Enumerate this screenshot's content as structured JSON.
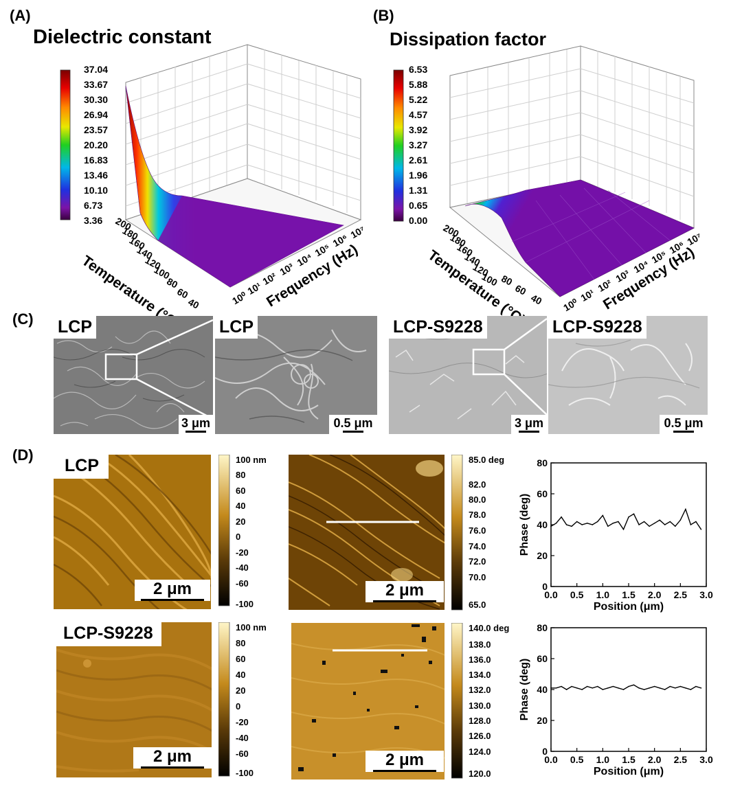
{
  "panel_a": {
    "label": "(A)",
    "title": "Dielectric constant",
    "colorbar_ticks": [
      "37.04",
      "33.67",
      "30.30",
      "26.94",
      "23.57",
      "20.20",
      "16.83",
      "13.46",
      "10.10",
      "6.73",
      "3.36"
    ],
    "temp_ticks": [
      "200",
      "180",
      "160",
      "140",
      "120",
      "100",
      "80",
      "60",
      "40"
    ],
    "temp_axis_label": "Temperature (°C)",
    "freq_ticks": [
      "10⁰",
      "10¹",
      "10²",
      "10³",
      "10⁴",
      "10⁵",
      "10⁶",
      "10⁷"
    ],
    "freq_axis_label": "Frequency (Hz)"
  },
  "panel_b": {
    "label": "(B)",
    "title": "Dissipation factor",
    "colorbar_ticks": [
      "6.53",
      "5.88",
      "5.22",
      "4.57",
      "3.92",
      "3.27",
      "2.61",
      "1.96",
      "1.31",
      "0.65",
      "0.00"
    ],
    "temp_ticks": [
      "200",
      "180",
      "160",
      "140",
      "120",
      "100",
      "80",
      "60",
      "40"
    ],
    "temp_axis_label": "Temperature (°C)",
    "freq_ticks": [
      "10⁰",
      "10¹",
      "10²",
      "10³",
      "10⁴",
      "10⁵",
      "10⁶",
      "10⁷"
    ],
    "freq_axis_label": "Frequency (Hz)"
  },
  "panel_c": {
    "label": "(C)",
    "images": [
      {
        "tag": "LCP",
        "scale": "3 μm"
      },
      {
        "tag": "LCP",
        "scale": "0.5 μm"
      },
      {
        "tag": "LCP-S9228",
        "scale": "3 μm"
      },
      {
        "tag": "LCP-S9228",
        "scale": "0.5 μm"
      }
    ]
  },
  "panel_d": {
    "label": "(D)",
    "rows": [
      {
        "tag": "LCP",
        "height_scale": "2 μm",
        "phase_scale": "2 μm",
        "height_ticks": [
          "100 nm",
          "80",
          "60",
          "40",
          "20",
          "0",
          "-20",
          "-40",
          "-60",
          "-100"
        ],
        "phase_ticks": [
          "85.0 deg",
          "82.0",
          "80.0",
          "78.0",
          "76.0",
          "74.0",
          "72.0",
          "70.0",
          "65.0"
        ]
      },
      {
        "tag": "LCP-S9228",
        "height_scale": "2 μm",
        "phase_scale": "2 μm",
        "height_ticks": [
          "100 nm",
          "80",
          "60",
          "40",
          "20",
          "0",
          "-20",
          "-40",
          "-60",
          "-100"
        ],
        "phase_ticks": [
          "140.0 deg",
          "138.0",
          "136.0",
          "134.0",
          "132.0",
          "130.0",
          "128.0",
          "126.0",
          "124.0",
          "120.0"
        ]
      }
    ]
  },
  "chart_data": [
    {
      "type": "line",
      "title": "",
      "xlabel": "Position (μm)",
      "ylabel": "Phase (deg)",
      "xlim": [
        0,
        3.0
      ],
      "ylim": [
        0,
        80
      ],
      "xticks": [
        "0.0",
        "0.5",
        "1.0",
        "1.5",
        "2.0",
        "2.5",
        "3.0"
      ],
      "yticks": [
        "0",
        "20",
        "40",
        "60",
        "80"
      ],
      "x": [
        0.0,
        0.1,
        0.2,
        0.3,
        0.4,
        0.5,
        0.6,
        0.7,
        0.8,
        0.9,
        1.0,
        1.1,
        1.2,
        1.3,
        1.4,
        1.5,
        1.6,
        1.7,
        1.8,
        1.9,
        2.0,
        2.1,
        2.2,
        2.3,
        2.4,
        2.5,
        2.6,
        2.7,
        2.8,
        2.9
      ],
      "values": [
        39,
        41,
        45,
        40,
        39,
        42,
        40,
        41,
        40,
        42,
        46,
        39,
        41,
        42,
        37,
        45,
        47,
        40,
        42,
        39,
        41,
        43,
        40,
        42,
        39,
        43,
        50,
        40,
        42,
        37
      ]
    },
    {
      "type": "line",
      "title": "",
      "xlabel": "Position (μm)",
      "ylabel": "Phase (deg)",
      "xlim": [
        0,
        3.0
      ],
      "ylim": [
        0,
        80
      ],
      "xticks": [
        "0.0",
        "0.5",
        "1.0",
        "1.5",
        "2.0",
        "2.5",
        "3.0"
      ],
      "yticks": [
        "0",
        "20",
        "40",
        "60",
        "80"
      ],
      "x": [
        0.0,
        0.1,
        0.2,
        0.3,
        0.4,
        0.5,
        0.6,
        0.7,
        0.8,
        0.9,
        1.0,
        1.1,
        1.2,
        1.3,
        1.4,
        1.5,
        1.6,
        1.7,
        1.8,
        1.9,
        2.0,
        2.1,
        2.2,
        2.3,
        2.4,
        2.5,
        2.6,
        2.7,
        2.8,
        2.9
      ],
      "values": [
        41,
        41,
        42,
        40,
        42,
        41,
        40,
        42,
        41,
        42,
        40,
        41,
        42,
        41,
        40,
        42,
        43,
        41,
        40,
        41,
        42,
        41,
        40,
        42,
        41,
        42,
        41,
        40,
        42,
        41
      ]
    }
  ]
}
